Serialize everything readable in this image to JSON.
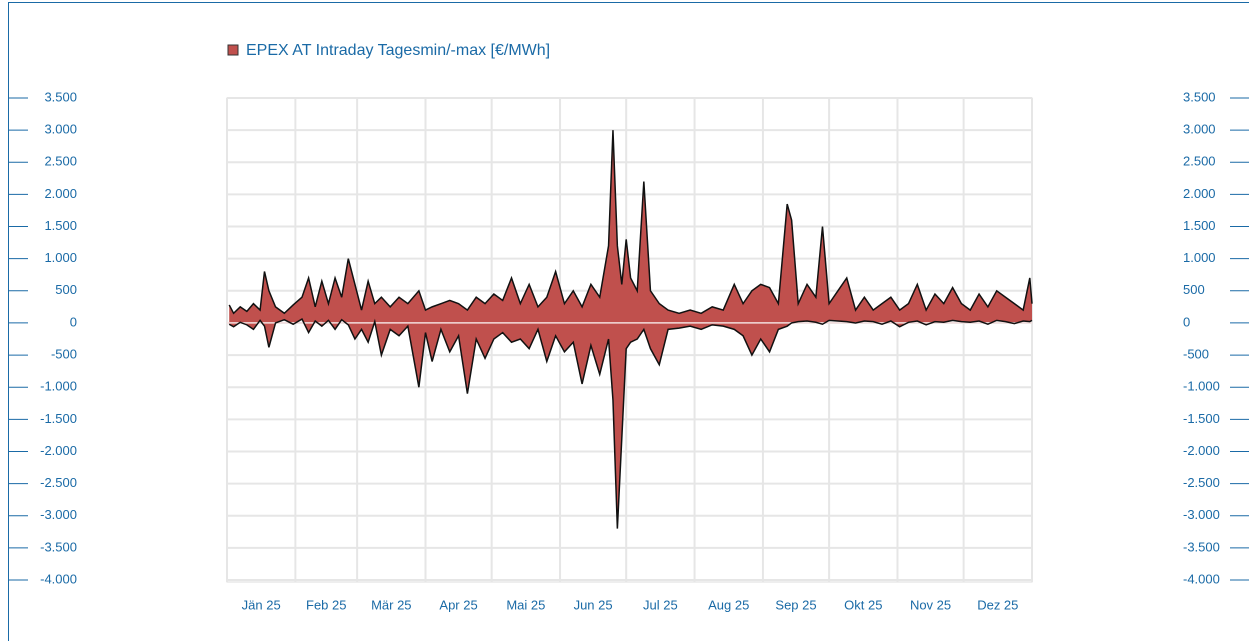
{
  "chart_data": {
    "type": "range-area",
    "series": [
      {
        "name": "EPEX AT Intraday Tagesmin/-max [€/MWh]",
        "color": "#c0504d",
        "values": [
          280,
          150,
          250,
          180,
          300,
          200,
          800,
          500,
          250,
          150,
          280,
          400,
          700,
          250,
          650,
          300,
          700,
          400,
          1000,
          600,
          200,
          650,
          300,
          400,
          250,
          400,
          300,
          500,
          200,
          250,
          300,
          350,
          300,
          200,
          400,
          300,
          450,
          350,
          700,
          300,
          600,
          250,
          400,
          800,
          300,
          500,
          250,
          600,
          400,
          1200,
          3000,
          1200,
          600,
          1300,
          700,
          500,
          2200,
          500,
          300,
          200,
          150,
          200,
          150,
          250,
          200,
          600,
          300,
          500,
          600,
          550,
          300,
          1850,
          1600,
          300,
          600,
          400,
          1500,
          300,
          500,
          700,
          200,
          400,
          200,
          300,
          400,
          200,
          300,
          600,
          200,
          450,
          300,
          550,
          300,
          200,
          450,
          250,
          500,
          400,
          300,
          200,
          700,
          300
        ],
        "low": [
          -20,
          -60,
          10,
          -30,
          -100,
          40,
          -50,
          -380,
          0,
          50,
          -20,
          60,
          -150,
          30,
          -50,
          40,
          -100,
          50,
          -30,
          -250,
          -100,
          -300,
          20,
          -500,
          -100,
          -200,
          -50,
          -1000,
          -150,
          -600,
          -100,
          -450,
          -200,
          -1100,
          -250,
          -550,
          -250,
          -150,
          -300,
          -250,
          -400,
          -100,
          -600,
          -200,
          -450,
          -300,
          -950,
          -350,
          -800,
          -250,
          -1200,
          -3200,
          -1800,
          -400,
          -300,
          -250,
          -100,
          -400,
          -650,
          -100,
          -80,
          -50,
          -100,
          -30,
          -50,
          -100,
          -200,
          -500,
          -250,
          -450,
          -100,
          -50,
          0,
          20,
          30,
          10,
          -20,
          40,
          30,
          20,
          0,
          30,
          20,
          -20,
          30,
          -60,
          10,
          30,
          -30,
          20,
          10,
          40,
          20,
          10,
          30,
          -20,
          40,
          20,
          -10,
          30,
          20,
          40
        ]
      }
    ],
    "x": [
      1,
      3,
      6,
      9,
      12,
      15,
      17,
      19,
      22,
      26,
      30,
      34,
      37,
      40,
      43,
      46,
      49,
      52,
      55,
      58,
      61,
      64,
      67,
      70,
      74,
      78,
      82,
      87,
      90,
      93,
      97,
      101,
      105,
      109,
      113,
      117,
      121,
      125,
      129,
      133,
      137,
      141,
      145,
      149,
      153,
      157,
      161,
      165,
      169,
      173,
      175,
      177,
      179,
      181,
      183,
      186,
      189,
      192,
      196,
      200,
      205,
      210,
      215,
      220,
      225,
      230,
      234,
      238,
      242,
      246,
      250,
      254,
      256,
      259,
      263,
      267,
      270,
      273,
      277,
      281,
      285,
      289,
      293,
      297,
      301,
      305,
      309,
      313,
      317,
      321,
      325,
      329,
      333,
      337,
      341,
      345,
      349,
      353,
      357,
      361,
      364,
      365
    ],
    "xlim": [
      0,
      365
    ],
    "xticks": [
      {
        "value": 15.5,
        "label": "Jän 25"
      },
      {
        "value": 45,
        "label": "Feb 25"
      },
      {
        "value": 74.5,
        "label": "Mär 25"
      },
      {
        "value": 105,
        "label": "Apr 25"
      },
      {
        "value": 135.5,
        "label": "Mai 25"
      },
      {
        "value": 166,
        "label": "Jun 25"
      },
      {
        "value": 196.5,
        "label": "Jul 25"
      },
      {
        "value": 227.5,
        "label": "Aug 25"
      },
      {
        "value": 258,
        "label": "Sep 25"
      },
      {
        "value": 288.5,
        "label": "Okt 25"
      },
      {
        "value": 319,
        "label": "Nov 25"
      },
      {
        "value": 349.5,
        "label": "Dez 25"
      }
    ],
    "xgrid": [
      0,
      31,
      59,
      90,
      120,
      151,
      181,
      212,
      243,
      273,
      304,
      334,
      365
    ],
    "ylim": [
      -4000,
      3500
    ],
    "yticks": [
      {
        "value": 3500,
        "label": "3.500"
      },
      {
        "value": 3000,
        "label": "3.000"
      },
      {
        "value": 2500,
        "label": "2.500"
      },
      {
        "value": 2000,
        "label": "2.000"
      },
      {
        "value": 1500,
        "label": "1.500"
      },
      {
        "value": 1000,
        "label": "1.000"
      },
      500,
      0,
      -500,
      {
        "value": -1000,
        "label": "-1.000"
      },
      {
        "value": -1500,
        "label": "-1.500"
      },
      {
        "value": -2000,
        "label": "-2.000"
      },
      {
        "value": -2500,
        "label": "-2.500"
      },
      {
        "value": -3000,
        "label": "-3.000"
      },
      {
        "value": -3500,
        "label": "-3.500"
      },
      {
        "value": -4000,
        "label": "-4.000"
      }
    ],
    "y2lim": [
      -4000,
      3500
    ],
    "y2ticks": [
      {
        "value": 3500,
        "label": "3.500"
      },
      {
        "value": 3000,
        "label": "3.000"
      },
      {
        "value": 2500,
        "label": "2.500"
      },
      {
        "value": 2000,
        "label": "2.000"
      },
      {
        "value": 1500,
        "label": "1.500"
      },
      {
        "value": 1000,
        "label": "1.000"
      },
      500,
      0,
      -500,
      {
        "value": -1000,
        "label": "-1.000"
      },
      {
        "value": -1500,
        "label": "-1.500"
      },
      {
        "value": -2000,
        "label": "-2.000"
      },
      {
        "value": -2500,
        "label": "-2.500"
      },
      {
        "value": -3000,
        "label": "-3.000"
      },
      {
        "value": -3500,
        "label": "-3.500"
      },
      {
        "value": -4000,
        "label": "-4.000"
      }
    ],
    "grid": true
  }
}
